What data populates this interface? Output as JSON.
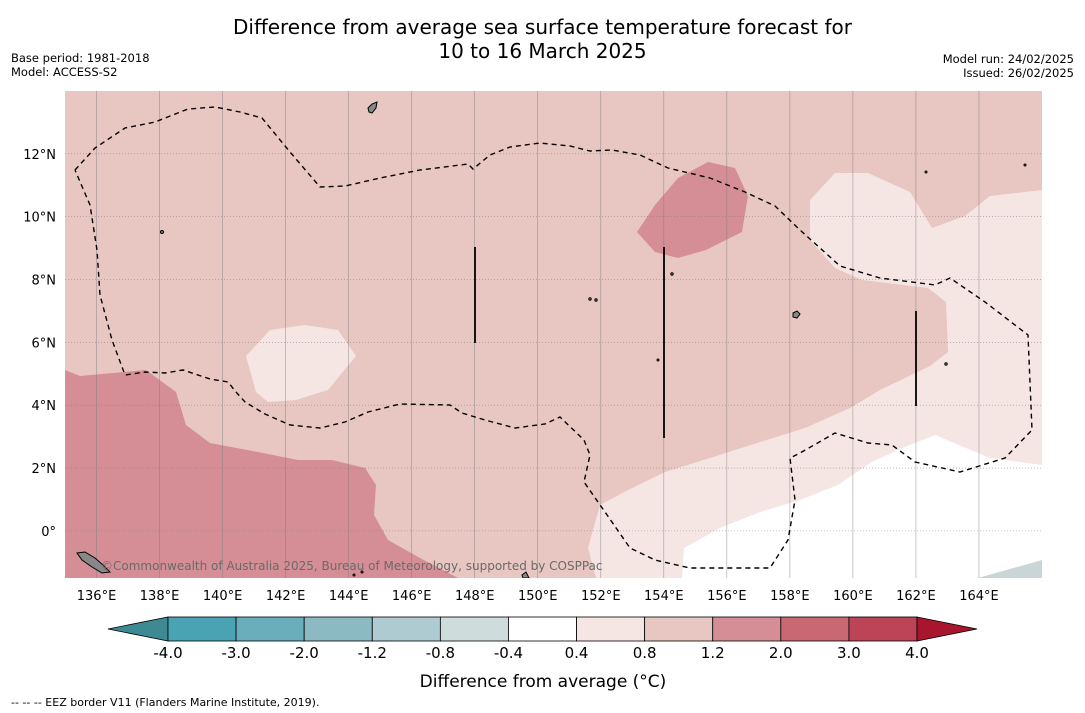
{
  "title": {
    "line1": "Difference from average sea surface temperature forecast for",
    "line2": "10 to 16 March 2025"
  },
  "meta_left": {
    "base_period": "Base period: 1981-2018",
    "model": "Model: ACCESS-S2"
  },
  "meta_right": {
    "model_run": "Model run: 24/02/2025",
    "issued": "Issued: 26/02/2025"
  },
  "map": {
    "lon_range": [
      135,
      166
    ],
    "lat_range": [
      -1.5,
      14
    ],
    "lon_ticks": [
      "136°E",
      "138°E",
      "140°E",
      "142°E",
      "144°E",
      "146°E",
      "148°E",
      "150°E",
      "152°E",
      "154°E",
      "156°E",
      "158°E",
      "160°E",
      "162°E",
      "164°E"
    ],
    "lat_ticks": [
      "12°N",
      "10°N",
      "8°N",
      "6°N",
      "4°N",
      "2°N",
      "0°"
    ],
    "copyright": "©Commonwealth of Australia 2025, Bureau of Meteorology, supported by COSPPac"
  },
  "colorbar": {
    "label": "Difference from average (°C)",
    "ticks": [
      "-4.0",
      "-3.0",
      "-2.0",
      "-1.2",
      "-0.8",
      "-0.4",
      "0.4",
      "0.8",
      "1.2",
      "2.0",
      "3.0",
      "4.0"
    ],
    "colors": [
      "#3e8a93",
      "#4aa3b3",
      "#6aaebb",
      "#8bbac3",
      "#adcbd0",
      "#cfdcdc",
      "#ffffff",
      "#f5e6e4",
      "#e8c6c1",
      "#d58e96",
      "#c96873",
      "#bd4457",
      "#a8162d"
    ]
  },
  "legend_note": "-- -- -- EEZ border V11 (Flanders Marine Institute, 2019)."
}
